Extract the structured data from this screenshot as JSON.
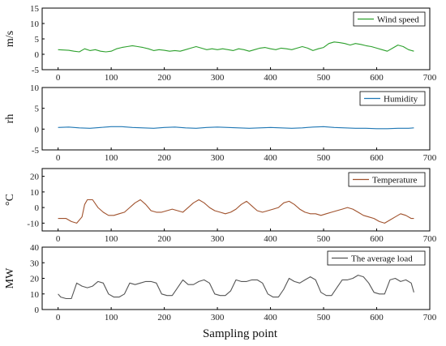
{
  "chart_data": [
    {
      "type": "line",
      "ylabel": "m/s",
      "ylim": [
        -5,
        15
      ],
      "yticks": [
        -5,
        0,
        5,
        10,
        15
      ],
      "xlim": [
        -30,
        700
      ],
      "xticks": [
        0,
        100,
        200,
        300,
        400,
        500,
        600,
        700
      ],
      "legend": "top-right",
      "series": [
        {
          "name": "Wind speed",
          "color": "#2ca02c",
          "x": [
            0,
            20,
            30,
            40,
            50,
            60,
            70,
            80,
            90,
            100,
            110,
            120,
            130,
            140,
            150,
            160,
            170,
            180,
            190,
            200,
            210,
            220,
            230,
            240,
            250,
            260,
            270,
            280,
            290,
            300,
            310,
            320,
            330,
            340,
            350,
            360,
            370,
            380,
            390,
            400,
            410,
            420,
            430,
            440,
            450,
            460,
            470,
            480,
            490,
            500,
            510,
            520,
            530,
            540,
            550,
            560,
            570,
            580,
            590,
            600,
            610,
            620,
            630,
            640,
            650,
            660,
            670
          ],
          "y": [
            1.5,
            1.3,
            1.0,
            0.8,
            1.8,
            1.2,
            1.5,
            1.0,
            0.8,
            1.0,
            1.8,
            2.2,
            2.5,
            2.8,
            2.5,
            2.2,
            1.8,
            1.2,
            1.5,
            1.3,
            1.0,
            1.2,
            1.0,
            1.5,
            2.0,
            2.5,
            2.0,
            1.5,
            1.8,
            1.5,
            1.8,
            1.5,
            1.2,
            1.8,
            1.5,
            1.0,
            1.5,
            2.0,
            2.2,
            1.8,
            1.5,
            2.0,
            1.8,
            1.5,
            2.0,
            2.5,
            2.0,
            1.2,
            1.8,
            2.2,
            3.5,
            4.0,
            3.8,
            3.5,
            3.0,
            3.5,
            3.2,
            2.8,
            2.5,
            2.0,
            1.5,
            1.0,
            2.0,
            3.0,
            2.5,
            1.5,
            1.0
          ]
        }
      ]
    },
    {
      "type": "line",
      "ylabel": "rh",
      "ylim": [
        -5,
        10
      ],
      "yticks": [
        -5,
        0,
        5,
        10
      ],
      "xlim": [
        -30,
        700
      ],
      "xticks": [
        0,
        100,
        200,
        300,
        400,
        500,
        600,
        700
      ],
      "legend": "top-right",
      "series": [
        {
          "name": "Humidity",
          "color": "#1f77b4",
          "x": [
            0,
            20,
            40,
            60,
            80,
            100,
            120,
            140,
            160,
            180,
            200,
            220,
            240,
            260,
            280,
            300,
            320,
            340,
            360,
            380,
            400,
            420,
            440,
            460,
            480,
            500,
            520,
            540,
            560,
            580,
            600,
            620,
            640,
            660,
            670
          ],
          "y": [
            0.4,
            0.5,
            0.3,
            0.2,
            0.4,
            0.6,
            0.6,
            0.4,
            0.3,
            0.2,
            0.4,
            0.5,
            0.3,
            0.2,
            0.4,
            0.5,
            0.4,
            0.3,
            0.2,
            0.3,
            0.4,
            0.3,
            0.2,
            0.3,
            0.5,
            0.6,
            0.4,
            0.3,
            0.2,
            0.2,
            0.1,
            0.1,
            0.2,
            0.2,
            0.3
          ]
        }
      ]
    },
    {
      "type": "line",
      "ylabel": "°C",
      "ylim": [
        -15,
        25
      ],
      "yticks": [
        -10,
        0,
        10,
        20
      ],
      "xlim": [
        -30,
        700
      ],
      "xticks": [
        0,
        100,
        200,
        300,
        400,
        500,
        600,
        700
      ],
      "legend": "top-right",
      "series": [
        {
          "name": "Temperature",
          "color": "#a0522d",
          "x": [
            0,
            15,
            25,
            35,
            45,
            50,
            55,
            65,
            75,
            85,
            95,
            105,
            115,
            125,
            135,
            145,
            155,
            165,
            175,
            185,
            195,
            205,
            215,
            225,
            235,
            245,
            255,
            265,
            275,
            285,
            295,
            305,
            315,
            325,
            335,
            345,
            355,
            365,
            375,
            385,
            395,
            405,
            415,
            425,
            435,
            445,
            455,
            465,
            475,
            485,
            495,
            505,
            515,
            525,
            535,
            545,
            555,
            565,
            575,
            585,
            595,
            605,
            615,
            625,
            635,
            645,
            655,
            665,
            670
          ],
          "y": [
            -7,
            -7,
            -9,
            -10,
            -6,
            2,
            5,
            5,
            0,
            -3,
            -5,
            -5,
            -4,
            -3,
            0,
            3,
            5,
            2,
            -2,
            -3,
            -3,
            -2,
            -1,
            -2,
            -3,
            0,
            3,
            5,
            3,
            0,
            -2,
            -3,
            -4,
            -3,
            -1,
            2,
            4,
            1,
            -2,
            -3,
            -2,
            -1,
            0,
            3,
            4,
            2,
            -1,
            -3,
            -4,
            -4,
            -5,
            -4,
            -3,
            -2,
            -1,
            0,
            -1,
            -3,
            -5,
            -6,
            -7,
            -9,
            -10,
            -8,
            -6,
            -4,
            -5,
            -7,
            -7
          ]
        }
      ]
    },
    {
      "type": "line",
      "ylabel": "MW",
      "ylim": [
        0,
        40
      ],
      "yticks": [
        0,
        10,
        20,
        30,
        40
      ],
      "xlim": [
        -30,
        700
      ],
      "xticks": [
        0,
        100,
        200,
        300,
        400,
        500,
        600,
        700
      ],
      "legend": "top-right",
      "series": [
        {
          "name": "The average load",
          "color": "#555555",
          "x": [
            0,
            5,
            15,
            25,
            35,
            45,
            55,
            65,
            75,
            85,
            95,
            105,
            115,
            125,
            135,
            145,
            155,
            165,
            175,
            185,
            195,
            205,
            215,
            225,
            235,
            245,
            255,
            265,
            275,
            285,
            295,
            305,
            315,
            325,
            335,
            345,
            355,
            365,
            375,
            385,
            395,
            405,
            415,
            425,
            435,
            445,
            455,
            465,
            475,
            485,
            495,
            505,
            515,
            525,
            535,
            545,
            555,
            565,
            575,
            585,
            595,
            605,
            615,
            625,
            635,
            645,
            655,
            665,
            670
          ],
          "y": [
            10,
            8,
            7,
            7,
            17,
            15,
            14,
            15,
            18,
            17,
            10,
            8,
            8,
            10,
            17,
            16,
            17,
            18,
            18,
            17,
            10,
            9,
            9,
            14,
            19,
            16,
            16,
            18,
            19,
            17,
            10,
            9,
            9,
            12,
            19,
            18,
            18,
            19,
            19,
            17,
            10,
            8,
            8,
            13,
            20,
            18,
            17,
            19,
            21,
            19,
            11,
            9,
            9,
            14,
            19,
            19,
            20,
            22,
            21,
            17,
            11,
            10,
            10,
            19,
            20,
            18,
            19,
            17,
            11
          ]
        }
      ]
    }
  ],
  "xlabel": "Sampling point"
}
